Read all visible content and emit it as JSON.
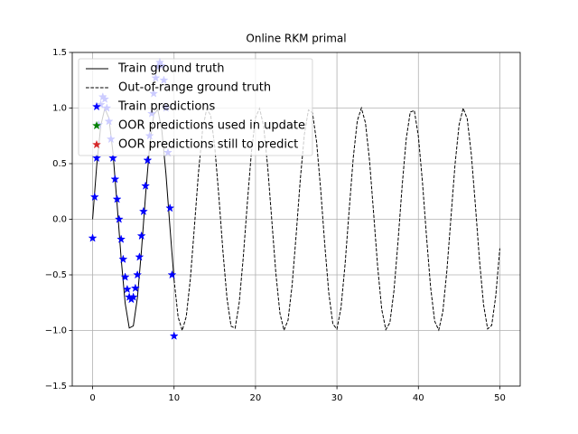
{
  "chart_data": {
    "type": "line",
    "title": "Online RKM primal",
    "xlim": [
      -2.5,
      52.5
    ],
    "ylim": [
      -1.5,
      1.5
    ],
    "xticks": [
      0,
      10,
      20,
      30,
      40,
      50
    ],
    "yticks": [
      {
        "value": -1.5,
        "label": "−1.5"
      },
      {
        "value": -1.0,
        "label": "−1.0"
      },
      {
        "value": -0.5,
        "label": "−0.5"
      },
      {
        "value": 0,
        "label": "0.0"
      },
      0.5,
      {
        "value": 1.0,
        "label": "1.0"
      },
      1.5
    ],
    "grid": true,
    "legend": "upper left",
    "series": [
      {
        "name": "Train ground truth",
        "color": "#000000",
        "linestyle": "solid",
        "marker": "none",
        "x": [
          0,
          0.5,
          1,
          1.5,
          2,
          2.5,
          3,
          3.5,
          4,
          4.5,
          5,
          5.5,
          6,
          6.5,
          7,
          7.5,
          8,
          8.5,
          9,
          9.5,
          10
        ],
        "values": [
          0,
          0.479,
          0.841,
          0.997,
          0.909,
          0.598,
          0.141,
          -0.351,
          -0.757,
          -0.978,
          -0.959,
          -0.706,
          -0.279,
          0.215,
          0.657,
          0.938,
          0.989,
          0.798,
          0.412,
          -0.075,
          -0.544
        ]
      },
      {
        "name": "Out-of-range ground truth",
        "color": "#000000",
        "linestyle": "dashed",
        "marker": "none",
        "x": [
          10,
          10.5,
          11,
          11.5,
          12,
          12.5,
          13,
          13.5,
          14,
          14.5,
          15,
          15.5,
          16,
          16.5,
          17,
          17.5,
          18,
          18.5,
          19,
          19.5,
          20,
          20.5,
          21,
          21.5,
          22,
          22.5,
          23,
          23.5,
          24,
          24.5,
          25,
          25.5,
          26,
          26.5,
          27,
          27.5,
          28,
          28.5,
          29,
          29.5,
          30,
          30.5,
          31,
          31.5,
          32,
          32.5,
          33,
          33.5,
          34,
          34.5,
          35,
          35.5,
          36,
          36.5,
          37,
          37.5,
          38,
          38.5,
          39,
          39.5,
          40,
          40.5,
          41,
          41.5,
          42,
          42.5,
          43,
          43.5,
          44,
          44.5,
          45,
          45.5,
          46,
          46.5,
          47,
          47.5,
          48,
          48.5,
          49,
          49.5,
          50
        ],
        "values": [
          -0.544,
          -0.88,
          -1.0,
          -0.875,
          -0.537,
          -0.066,
          0.42,
          0.804,
          0.991,
          0.935,
          0.65,
          0.207,
          -0.288,
          -0.712,
          -0.961,
          -0.98,
          -0.751,
          -0.341,
          0.15,
          0.605,
          0.913,
          0.997,
          0.837,
          0.468,
          -0.009,
          -0.486,
          -0.846,
          -0.998,
          -0.906,
          -0.589,
          -0.132,
          0.358,
          0.763,
          0.984,
          0.956,
          0.696,
          0.271,
          -0.224,
          -0.664,
          -0.942,
          -0.988,
          -0.793,
          -0.404,
          0.083,
          0.551,
          0.886,
          1.0,
          0.868,
          0.529,
          0.057,
          -0.428,
          -0.81,
          -0.992,
          -0.93,
          -0.644,
          -0.199,
          0.296,
          0.719,
          0.964,
          0.978,
          0.745,
          0.333,
          -0.159,
          -0.612,
          -0.917,
          -0.996,
          -0.832,
          -0.46,
          0.018,
          0.494,
          0.851,
          0.999,
          0.902,
          0.582,
          0.124,
          -0.366,
          -0.768,
          -0.986,
          -0.954,
          -0.689,
          -0.262
        ]
      },
      {
        "name": "Train predictions",
        "color": "#0000ff",
        "linestyle": "none",
        "marker": "star",
        "x": [
          0,
          0.25,
          0.5,
          0.75,
          1,
          1.25,
          1.5,
          1.75,
          2,
          2.25,
          2.5,
          2.75,
          3,
          3.25,
          3.5,
          3.75,
          4,
          4.25,
          4.5,
          4.75,
          5,
          5.25,
          5.5,
          5.75,
          6,
          6.25,
          6.5,
          6.75,
          7,
          7.25,
          7.5,
          7.75,
          8,
          8.25,
          8.5,
          8.75,
          9,
          9.25,
          9.5,
          9.75,
          10
        ],
        "values": [
          -0.17,
          0.2,
          0.55,
          0.85,
          1.03,
          1.1,
          1.08,
          1.0,
          0.88,
          0.72,
          0.55,
          0.36,
          0.18,
          0.0,
          -0.18,
          -0.36,
          -0.52,
          -0.63,
          -0.7,
          -0.72,
          -0.7,
          -0.62,
          -0.5,
          -0.34,
          -0.15,
          0.07,
          0.3,
          0.53,
          0.75,
          0.95,
          1.13,
          1.27,
          1.37,
          1.41,
          1.38,
          1.25,
          1.0,
          0.6,
          0.1,
          -0.5,
          -1.05
        ]
      },
      {
        "name": "OOR predictions used in update",
        "color": "#008000",
        "linestyle": "none",
        "marker": "star",
        "x": [],
        "values": []
      },
      {
        "name": "OOR predictions still to predict",
        "color": "#d62728",
        "linestyle": "none",
        "marker": "star",
        "x": [],
        "values": []
      }
    ]
  }
}
